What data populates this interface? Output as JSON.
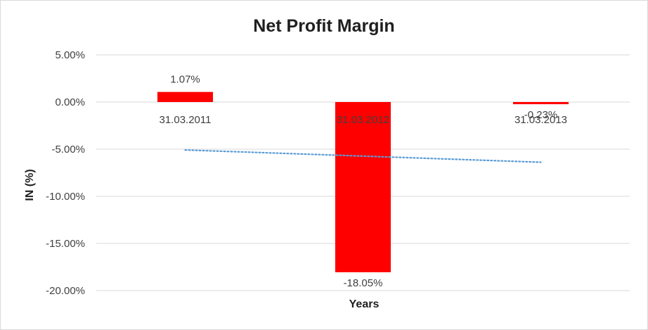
{
  "chart_data": {
    "type": "bar",
    "title": "Net Profit Margin",
    "xlabel": "Years",
    "ylabel": "IN (%)",
    "categories": [
      "31.03.2011",
      "31.03.2012",
      "31.03.2013"
    ],
    "values": [
      1.07,
      -18.05,
      -0.23
    ],
    "value_labels": [
      "1.07%",
      "-18.05%",
      "-0.23%"
    ],
    "ylim": [
      -20,
      5
    ],
    "yticks": [
      5,
      0,
      -5,
      -10,
      -15,
      -20
    ],
    "ytick_labels": [
      "5.00%",
      "0.00%",
      "-5.00%",
      "-10.00%",
      "-15.00%",
      "-20.00%"
    ],
    "grid": true,
    "legend": "none",
    "trendline": {
      "type": "linear",
      "style": "dotted"
    },
    "colors": {
      "bar": "#ff0000",
      "trendline": "#5b9bd5",
      "grid": "#d9d9d9"
    }
  }
}
